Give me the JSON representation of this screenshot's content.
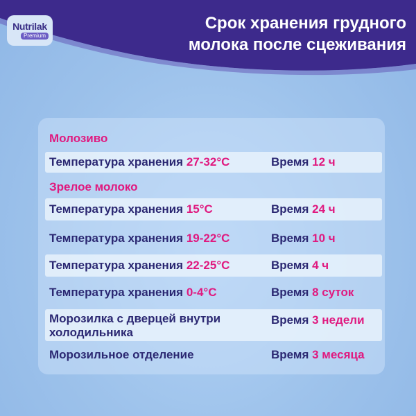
{
  "brand": {
    "name": "Nutrilak",
    "sub": "Premium"
  },
  "title": {
    "line1": "Срок хранения грудного",
    "line2": "молока после сцеживания"
  },
  "colors": {
    "header": "#3d2a8c",
    "accent": "#e0197f",
    "text": "#2b2872",
    "background": "#9fc4ec"
  },
  "sections": {
    "colostrum": "Молозиво",
    "mature": "Зрелое молоко"
  },
  "labels": {
    "temp": "Температура хранения",
    "time": "Время"
  },
  "rows": [
    {
      "temp": "27-32°C",
      "time": "12 ч"
    },
    {
      "temp": "15°C",
      "time": "24 ч"
    },
    {
      "temp": "19-22°C",
      "time": "10 ч"
    },
    {
      "temp": "22-25°C",
      "time": "4 ч"
    },
    {
      "temp": "0-4°C",
      "time": "8 суток"
    },
    {
      "place_line1": "Морозилка с дверцей внутри",
      "place_line2": "холодильника",
      "time": "3 недели"
    },
    {
      "place": "Морозильное отделение",
      "time": "3 месяца"
    }
  ]
}
